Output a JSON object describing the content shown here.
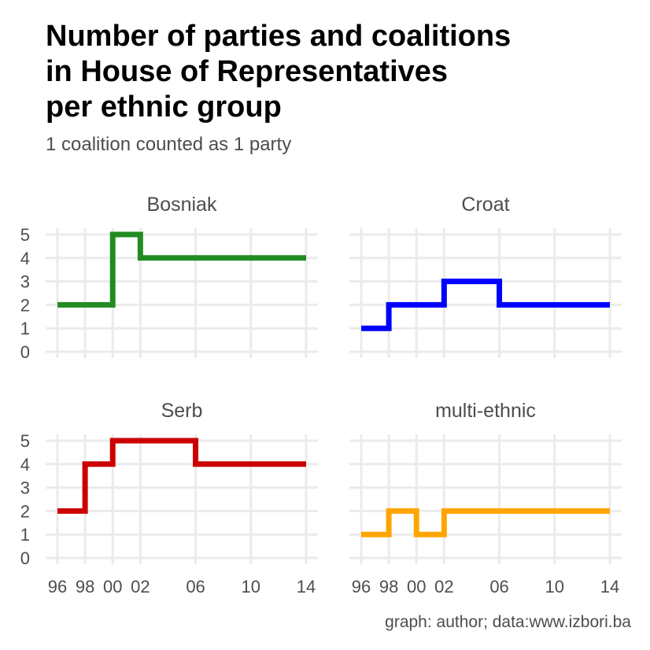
{
  "chart_data": {
    "type": "line",
    "step": "post",
    "title": "Number of parties and coalitions in House of Representatives per ethnic group",
    "title_lines": [
      "Number of parties and coalitions",
      "in House of Representatives",
      "per ethnic group"
    ],
    "subtitle": "1 coalition counted as 1 party",
    "caption": "graph: author; data:www.izbori.ba",
    "xlabel": "",
    "ylabel": "",
    "x": [
      1996,
      1998,
      2000,
      2002,
      2006,
      2010,
      2014
    ],
    "x_tick_labels": [
      "96",
      "98",
      "00",
      "02",
      "06",
      "10",
      "14"
    ],
    "y_ticks": [
      0,
      1,
      2,
      3,
      4,
      5
    ],
    "xlim": [
      1996,
      2014
    ],
    "ylim": [
      0,
      5
    ],
    "grid": true,
    "legend": "none",
    "facets": [
      {
        "name": "Bosniak",
        "color": "#228B22",
        "values": [
          2,
          2,
          5,
          4,
          4,
          4,
          4
        ]
      },
      {
        "name": "Croat",
        "color": "#0000FF",
        "values": [
          1,
          2,
          2,
          3,
          2,
          2,
          2
        ]
      },
      {
        "name": "Serb",
        "color": "#CC0000",
        "values": [
          2,
          4,
          5,
          5,
          4,
          4,
          4
        ]
      },
      {
        "name": "multi-ethnic",
        "color": "#FFA500",
        "values": [
          1,
          2,
          1,
          2,
          2,
          2,
          2
        ]
      }
    ]
  }
}
